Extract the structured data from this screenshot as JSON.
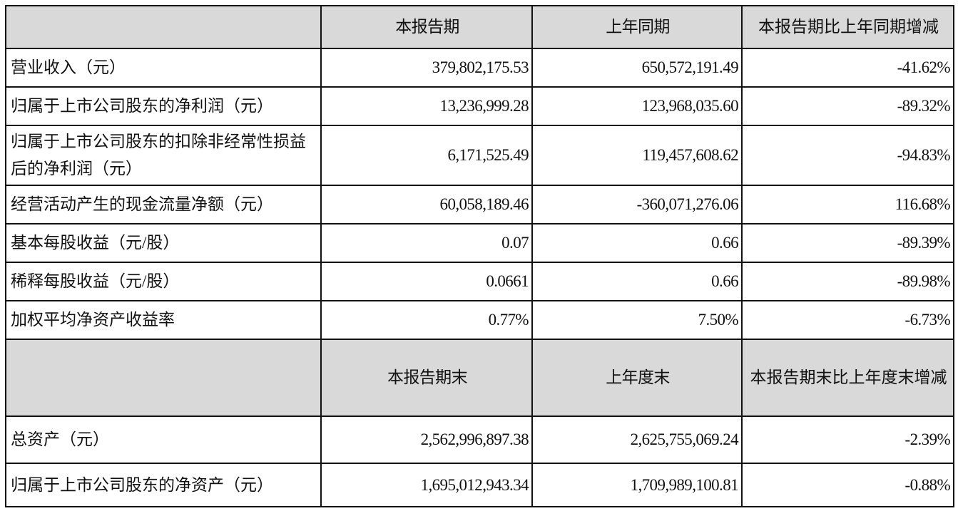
{
  "header1": [
    "",
    "本报告期",
    "上年同期",
    "本报告期比上年同期增减"
  ],
  "rows1": [
    [
      "营业收入（元）",
      "379,802,175.53",
      "650,572,191.49",
      "-41.62%"
    ],
    [
      "归属于上市公司股东的净利润（元）",
      "13,236,999.28",
      "123,968,035.60",
      "-89.32%"
    ],
    [
      "归属于上市公司股东的扣除非经常性损益后的净利润（元）",
      "6,171,525.49",
      "119,457,608.62",
      "-94.83%"
    ],
    [
      "经营活动产生的现金流量净额（元）",
      "60,058,189.46",
      "-360,071,276.06",
      "116.68%"
    ],
    [
      "基本每股收益（元/股）",
      "0.07",
      "0.66",
      "-89.39%"
    ],
    [
      "稀释每股收益（元/股）",
      "0.0661",
      "0.66",
      "-89.98%"
    ],
    [
      "加权平均净资产收益率",
      "0.77%",
      "7.50%",
      "-6.73%"
    ]
  ],
  "header2": [
    "",
    "本报告期末",
    "上年度末",
    "本报告期末比上年度末增减"
  ],
  "rows2": [
    [
      "总资产（元）",
      "2,562,996,897.38",
      "2,625,755,069.24",
      "-2.39%"
    ],
    [
      "归属于上市公司股东的净资产（元）",
      "1,695,012,943.34",
      "1,709,989,100.81",
      "-0.88%"
    ]
  ]
}
